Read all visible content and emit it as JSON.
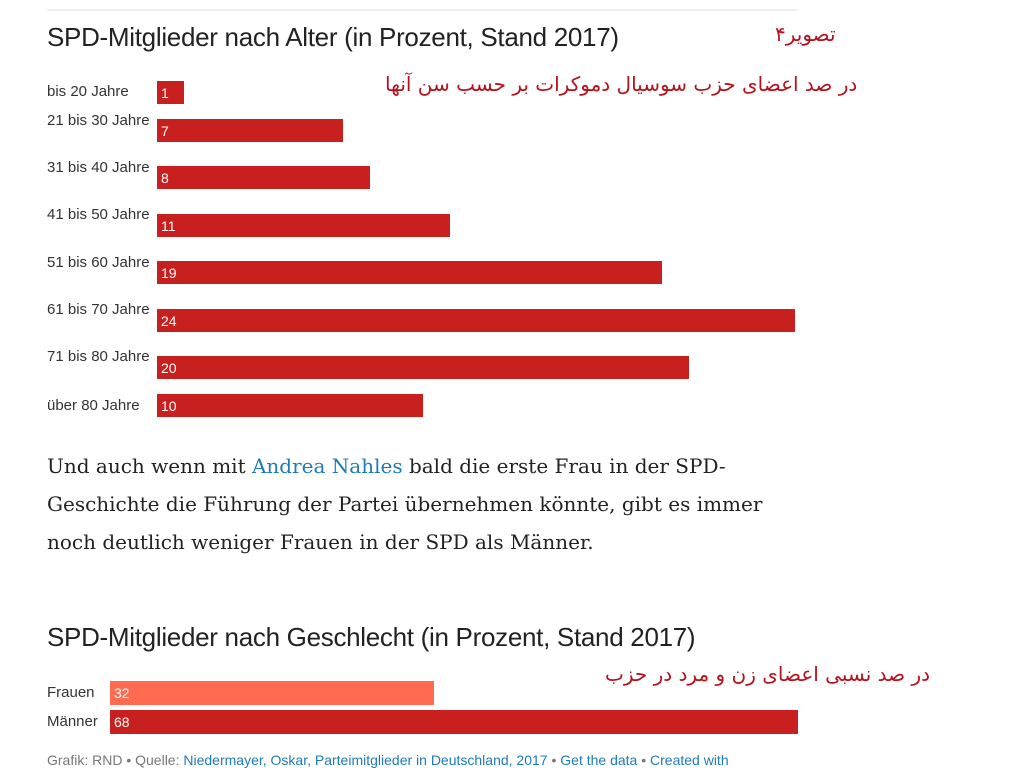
{
  "chart_data": [
    {
      "type": "bar",
      "title": "SPD-Mitglieder nach Alter (in Prozent, Stand 2017)",
      "categories": [
        "bis 20 Jahre",
        "21 bis 30 Jahre",
        "31 bis 40 Jahre",
        "41 bis 50 Jahre",
        "51 bis 60 Jahre",
        "61 bis 70 Jahre",
        "71 bis 80 Jahre",
        "über 80 Jahre"
      ],
      "values": [
        1,
        7,
        8,
        11,
        19,
        24,
        20,
        10
      ],
      "color": "#c8201f",
      "orientation": "horizontal"
    },
    {
      "type": "bar",
      "title": "SPD-Mitglieder nach Geschlecht (in Prozent, Stand 2017)",
      "categories": [
        "Frauen",
        "Männer"
      ],
      "values": [
        32,
        68
      ],
      "colors": [
        "#ff6b50",
        "#c8201f"
      ],
      "orientation": "horizontal"
    }
  ],
  "annotations": {
    "figure": "تصویر۴",
    "age_note": "در صد اعضای حزب سوسیال دموکرات بر حسب سن آنها",
    "gender_note": "در صد نسبی اعضای زن  و مرد در حزب"
  },
  "paragraph": {
    "before": "Und auch wenn mit ",
    "link": "Andrea Nahles",
    "after": " bald die erste Frau in der SPD-Geschichte die Führung der Partei übernehmen könnte, gibt es immer noch deutlich weniger Frauen in der SPD als Männer."
  },
  "footer": {
    "grafik": "Grafik: RND • Quelle: ",
    "source": "Niedermayer, Oskar, Parteimitglieder in Deutschland, 2017",
    "sep1": " • ",
    "get_data": "Get the data",
    "sep2": " • ",
    "created": "Created with"
  }
}
